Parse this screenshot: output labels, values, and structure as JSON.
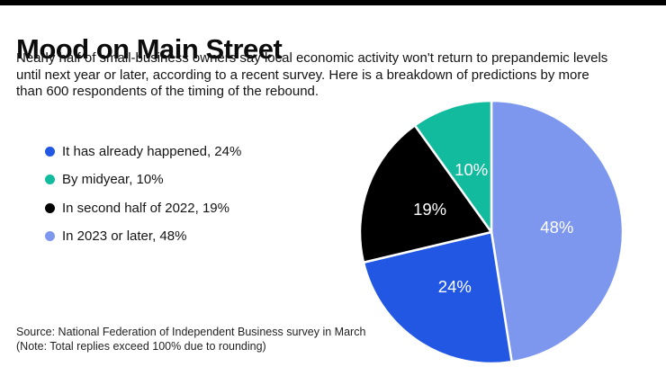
{
  "page": {
    "top_rule_color": "#000000",
    "background": "#ffffff"
  },
  "header": {
    "title": "Mood on Main Street",
    "subtitle_lines": [
      "Nearly half of small-business owners say local economic activity won't return to prepandemic levels",
      "until next year or later, according to a recent survey. Here is a breakdown of predictions by more",
      "than 600 respondents of the timing of the rebound."
    ]
  },
  "chart_data": {
    "type": "pie",
    "title": "Mood on Main Street",
    "unit": "%",
    "slices": [
      {
        "label": "It has already happened",
        "value": 24,
        "pct_label": "24%",
        "color": "#2157e3",
        "legend_label": "It has already happened, 24%"
      },
      {
        "label": "By midyear",
        "value": 10,
        "pct_label": "10%",
        "color": "#12bb9e",
        "legend_label": "By midyear, 10%"
      },
      {
        "label": "In second half of 2022",
        "value": 19,
        "pct_label": "19%",
        "color": "#000000",
        "legend_label": "In second half of 2022, 19%"
      },
      {
        "label": "In 2023 or later",
        "value": 48,
        "pct_label": "48%",
        "color": "#7d97ee",
        "legend_label": "In 2023 or later, 48%"
      }
    ],
    "clockwise_from_top_order": [
      3,
      0,
      2,
      1
    ],
    "start_angle_deg": 0,
    "label_radius_fraction": 0.5,
    "values_sum": 101,
    "separator_color": "#ffffff",
    "legend_position": "left"
  },
  "footer": {
    "source": "Source: National Federation of Independent Business survey in March",
    "note": "(Note: Total replies exceed 100% due to rounding)"
  }
}
